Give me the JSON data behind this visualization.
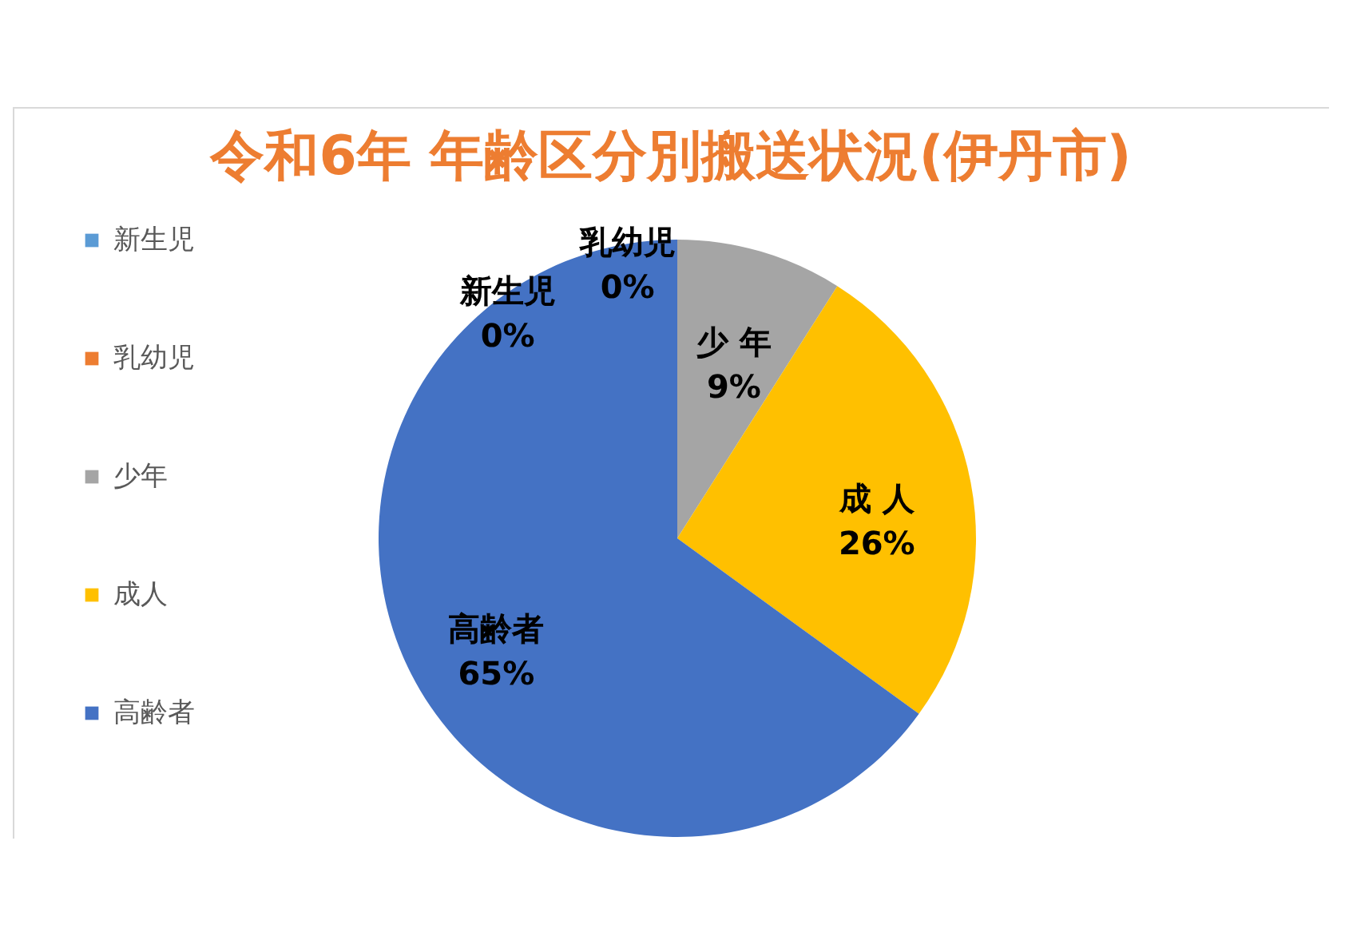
{
  "chart_data": {
    "type": "pie",
    "title": "令和6年 年齢区分別搬送状況(伊丹市)",
    "categories": [
      "新生児",
      "乳幼児",
      "少年",
      "成人",
      "高齢者"
    ],
    "values": [
      0,
      0,
      9,
      26,
      65
    ],
    "colors": [
      "#5b9bd5",
      "#ed7d31",
      "#a5a5a5",
      "#ffc000",
      "#4472c4"
    ],
    "value_labels": [
      "新生児\n0%",
      "乳幼児\n0%",
      "少 年\n9%",
      "成 人\n26%",
      "高齢者\n65%"
    ],
    "legend": "left"
  }
}
